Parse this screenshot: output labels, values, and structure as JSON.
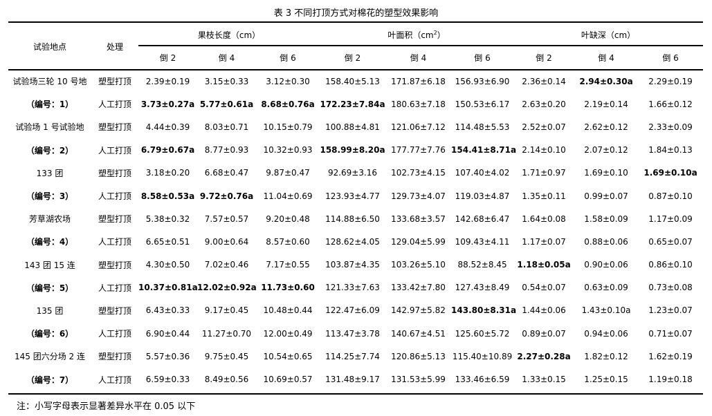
{
  "title": "表 3 不同打顶方式对棉花的塑型效果影响",
  "header": {
    "site": "试验地点",
    "treatment": "处理",
    "groups": [
      {
        "label": "果枝长度（cm）",
        "sup": ""
      },
      {
        "label": "叶面积（cm",
        "sup": "2",
        "suffix": "）"
      },
      {
        "label": "叶缺深（cm）",
        "sup": ""
      }
    ],
    "subcols": [
      "倒 2",
      "倒 4",
      "倒 6",
      "倒 2",
      "倒 4",
      "倒 6",
      "倒 2",
      "倒 4",
      "倒 6"
    ]
  },
  "rows": [
    {
      "site": "试验场三轮 10 号地",
      "treatment": "塑型打顶",
      "values": [
        "2.39±0.19",
        "3.15±0.33",
        "3.12±0.30",
        "158.40±5.13",
        "171.87±6.18",
        "156.93±6.90",
        "2.36±0.14",
        "2.94±0.30a",
        "2.29±0.19"
      ],
      "bold": [
        0,
        0,
        0,
        0,
        0,
        0,
        0,
        1,
        0
      ]
    },
    {
      "site": "（编号：1）",
      "treatment": "人工打顶",
      "values": [
        "3.73±0.27a",
        "5.77±0.61a",
        "8.68±0.76a",
        "172.23±7.84a",
        "180.63±7.18",
        "150.53±6.17",
        "2.63±0.20",
        "2.19±0.14",
        "1.66±0.12"
      ],
      "bold": [
        1,
        1,
        1,
        1,
        0,
        0,
        0,
        0,
        0
      ]
    },
    {
      "site": "试验场 1 号试验地",
      "treatment": "塑型打顶",
      "values": [
        "4.44±0.39",
        "8.03±0.71",
        "10.15±0.79",
        "100.88±4.81",
        "121.06±7.12",
        "114.48±5.53",
        "2.52±0.07",
        "2.62±0.12",
        "2.33±0.09"
      ],
      "bold": [
        0,
        0,
        0,
        0,
        0,
        0,
        0,
        0,
        0
      ]
    },
    {
      "site": "（编号：2）",
      "treatment": "人工打顶",
      "values": [
        "6.79±0.67a",
        "8.77±0.93",
        "10.32±0.93",
        "158.99±8.20a",
        "177.77±7.76",
        "154.41±8.71a",
        "2.14±0.10",
        "2.07±0.12",
        "1.84±0.13"
      ],
      "bold": [
        1,
        0,
        0,
        1,
        0,
        1,
        0,
        0,
        0
      ]
    },
    {
      "site": "133 团",
      "treatment": "塑型打顶",
      "values": [
        "3.18±0.20",
        "6.68±0.47",
        "9.87±0.47",
        "92.69±3.16",
        "102.73±4.15",
        "107.40±4.02",
        "1.71±0.97",
        "1.69±0.10",
        "1.69±0.10a"
      ],
      "bold": [
        0,
        0,
        0,
        0,
        0,
        0,
        0,
        0,
        1
      ]
    },
    {
      "site": "（编号：3）",
      "treatment": "人工打顶",
      "values": [
        "8.58±0.53a",
        "9.72±0.76a",
        "11.04±0.69",
        "123.93±4.77",
        "129.73±4.07",
        "119.03±4.87",
        "1.35±0.11",
        "0.99±0.07",
        "0.87±0.10"
      ],
      "bold": [
        1,
        1,
        0,
        0,
        0,
        0,
        0,
        0,
        0
      ]
    },
    {
      "site": "芳草湖农场",
      "treatment": "塑型打顶",
      "values": [
        "5.38±0.32",
        "7.57±0.57",
        "9.20±0.48",
        "114.88±6.50",
        "133.68±3.57",
        "142.68±6.47",
        "1.64±0.08",
        "1.58±0.09",
        "1.17±0.09"
      ],
      "bold": [
        0,
        0,
        0,
        0,
        0,
        0,
        0,
        0,
        0
      ]
    },
    {
      "site": "（编号：4）",
      "treatment": "人工打顶",
      "values": [
        "6.65±0.51",
        "9.00±0.64",
        "8.57±0.60",
        "128.62±4.05",
        "129.04±5.99",
        "109.43±4.11",
        "1.17±0.07",
        "0.88±0.06",
        "0.65±0.07"
      ],
      "bold": [
        0,
        0,
        0,
        0,
        0,
        0,
        0,
        0,
        0
      ]
    },
    {
      "site": "143 团 15 连",
      "treatment": "塑型打顶",
      "values": [
        "4.30±0.50",
        "7.02±0.46",
        "7.17±0.55",
        "103.87±4.35",
        "103.26±5.10",
        "88.52±8.45",
        "1.18±0.05a",
        "0.90±0.06",
        "0.86±0.10"
      ],
      "bold": [
        0,
        0,
        0,
        0,
        0,
        0,
        1,
        0,
        0
      ]
    },
    {
      "site": "（编号：5）",
      "treatment": "人工打顶",
      "values": [
        "10.37±0.81a",
        "12.02±0.92a",
        "11.73±0.60",
        "121.33±7.63",
        "133.42±7.80",
        "127.43±8.49",
        "0.54±0.07",
        "0.63±0.09",
        "0.73±0.08"
      ],
      "bold": [
        1,
        1,
        1,
        0,
        0,
        0,
        0,
        0,
        0
      ]
    },
    {
      "site": "135 团",
      "treatment": "塑型打顶",
      "values": [
        "6.43±0.33",
        "9.17±0.45",
        "10.48±0.44",
        "122.47±6.09",
        "142.97±5.82",
        "143.80±8.31a",
        "1.44±0.06",
        "1.43±0.10a",
        "1.23±0.07"
      ],
      "bold": [
        0,
        0,
        0,
        0,
        0,
        1,
        0,
        0,
        0
      ]
    },
    {
      "site": "（编号：6）",
      "treatment": "人工打顶",
      "values": [
        "6.90±0.44",
        "11.27±0.70",
        "12.00±0.49",
        "113.47±3.78",
        "140.67±4.51",
        "125.60±5.72",
        "0.89±0.07",
        "0.94±0.06",
        "0.71±0.07"
      ],
      "bold": [
        0,
        0,
        0,
        0,
        0,
        0,
        0,
        0,
        0
      ]
    },
    {
      "site": "145 团六分场 2 连",
      "treatment": "塑型打顶",
      "values": [
        "5.57±0.36",
        "9.75±0.45",
        "10.54±0.65",
        "114.25±7.74",
        "120.86±5.13",
        "115.40±10.89",
        "2.27±0.28a",
        "1.82±0.12",
        "1.62±0.19"
      ],
      "bold": [
        0,
        0,
        0,
        0,
        0,
        0,
        1,
        0,
        0
      ]
    },
    {
      "site": "（编号：7）",
      "treatment": "人工打顶",
      "values": [
        "6.59±0.33",
        "8.49±0.56",
        "10.69±0.57",
        "131.48±9.17",
        "131.53±5.99",
        "133.46±6.59",
        "1.33±0.15",
        "1.25±0.15",
        "1.19±0.18"
      ],
      "bold": [
        0,
        0,
        0,
        0,
        0,
        0,
        0,
        0,
        0
      ]
    }
  ],
  "note": "注：小写字母表示显著差异水平在 0.05 以下"
}
